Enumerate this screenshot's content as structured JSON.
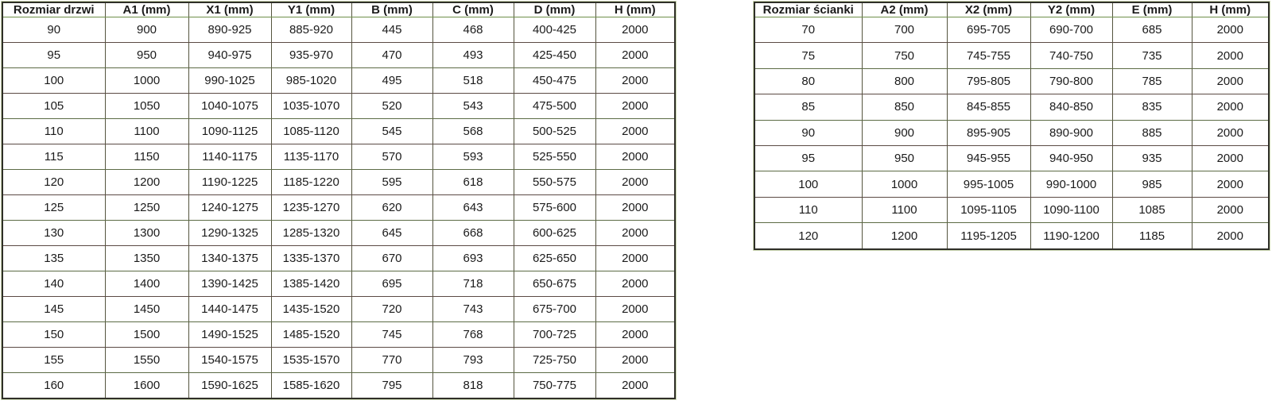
{
  "door_table": {
    "name": "Rozmiar drzwi",
    "headers": [
      "Rozmiar drzwi",
      "A1 (mm)",
      "X1 (mm)",
      "Y1 (mm)",
      "B (mm)",
      "C (mm)",
      "D (mm)",
      "H (mm)"
    ],
    "rows": [
      [
        "90",
        "900",
        "890-925",
        "885-920",
        "445",
        "468",
        "400-425",
        "2000"
      ],
      [
        "95",
        "950",
        "940-975",
        "935-970",
        "470",
        "493",
        "425-450",
        "2000"
      ],
      [
        "100",
        "1000",
        "990-1025",
        "985-1020",
        "495",
        "518",
        "450-475",
        "2000"
      ],
      [
        "105",
        "1050",
        "1040-1075",
        "1035-1070",
        "520",
        "543",
        "475-500",
        "2000"
      ],
      [
        "110",
        "1100",
        "1090-1125",
        "1085-1120",
        "545",
        "568",
        "500-525",
        "2000"
      ],
      [
        "115",
        "1150",
        "1140-1175",
        "1135-1170",
        "570",
        "593",
        "525-550",
        "2000"
      ],
      [
        "120",
        "1200",
        "1190-1225",
        "1185-1220",
        "595",
        "618",
        "550-575",
        "2000"
      ],
      [
        "125",
        "1250",
        "1240-1275",
        "1235-1270",
        "620",
        "643",
        "575-600",
        "2000"
      ],
      [
        "130",
        "1300",
        "1290-1325",
        "1285-1320",
        "645",
        "668",
        "600-625",
        "2000"
      ],
      [
        "135",
        "1350",
        "1340-1375",
        "1335-1370",
        "670",
        "693",
        "625-650",
        "2000"
      ],
      [
        "140",
        "1400",
        "1390-1425",
        "1385-1420",
        "695",
        "718",
        "650-675",
        "2000"
      ],
      [
        "145",
        "1450",
        "1440-1475",
        "1435-1520",
        "720",
        "743",
        "675-700",
        "2000"
      ],
      [
        "150",
        "1500",
        "1490-1525",
        "1485-1520",
        "745",
        "768",
        "700-725",
        "2000"
      ],
      [
        "155",
        "1550",
        "1540-1575",
        "1535-1570",
        "770",
        "793",
        "725-750",
        "2000"
      ],
      [
        "160",
        "1600",
        "1590-1625",
        "1585-1620",
        "795",
        "818",
        "750-775",
        "2000"
      ]
    ]
  },
  "wall_table": {
    "name": "Rozmiar ścianki",
    "headers": [
      "Rozmiar ścianki",
      "A2 (mm)",
      "X2 (mm)",
      "Y2 (mm)",
      "E (mm)",
      "H (mm)"
    ],
    "rows": [
      [
        "70",
        "700",
        "695-705",
        "690-700",
        "685",
        "2000"
      ],
      [
        "75",
        "750",
        "745-755",
        "740-750",
        "735",
        "2000"
      ],
      [
        "80",
        "800",
        "795-805",
        "790-800",
        "785",
        "2000"
      ],
      [
        "85",
        "850",
        "845-855",
        "840-850",
        "835",
        "2000"
      ],
      [
        "90",
        "900",
        "895-905",
        "890-900",
        "885",
        "2000"
      ],
      [
        "95",
        "950",
        "945-955",
        "940-950",
        "935",
        "2000"
      ],
      [
        "100",
        "1000",
        "995-1005",
        "990-1000",
        "985",
        "2000"
      ],
      [
        "110",
        "1100",
        "1095-1105",
        "1090-1100",
        "1085",
        "2000"
      ],
      [
        "120",
        "1200",
        "1195-1205",
        "1190-1200",
        "1185",
        "2000"
      ]
    ]
  },
  "colors": {
    "background": "#ffffff",
    "text": "#1b1b1b",
    "outer_border": "#2f2f28",
    "vertical_rule": "#55553f",
    "header_rule_green": "#6f8f4a",
    "row_rule_maroon": "#5b4a44",
    "halo_green": "#cdd8b4"
  },
  "column_widths": {
    "door_table": [
      129,
      105,
      104,
      101,
      102,
      102,
      103,
      100
    ],
    "wall_table": [
      135,
      107,
      105,
      103,
      100,
      97
    ]
  }
}
